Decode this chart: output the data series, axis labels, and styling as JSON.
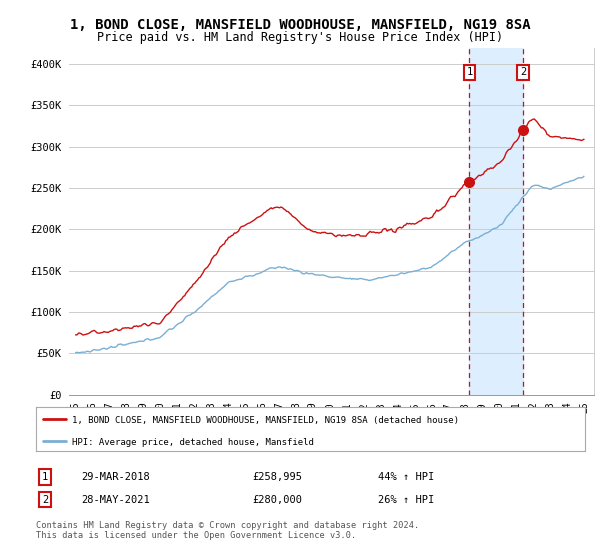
{
  "title": "1, BOND CLOSE, MANSFIELD WOODHOUSE, MANSFIELD, NG19 8SA",
  "subtitle": "Price paid vs. HM Land Registry's House Price Index (HPI)",
  "title_fontsize": 10,
  "subtitle_fontsize": 8.5,
  "ylim": [
    0,
    420000
  ],
  "yticks": [
    0,
    50000,
    100000,
    150000,
    200000,
    250000,
    300000,
    350000,
    400000
  ],
  "ytick_labels": [
    "£0",
    "£50K",
    "£100K",
    "£150K",
    "£200K",
    "£250K",
    "£300K",
    "£350K",
    "£400K"
  ],
  "hpi_color": "#7aafd4",
  "price_color": "#cc1111",
  "vline_color": "#cc1111",
  "shade_color": "#ddeeff",
  "sale1_date_num": 2018.24,
  "sale1_price": 258995,
  "sale2_date_num": 2021.41,
  "sale2_price": 280000,
  "legend_entry1": "1, BOND CLOSE, MANSFIELD WOODHOUSE, MANSFIELD, NG19 8SA (detached house)",
  "legend_entry2": "HPI: Average price, detached house, Mansfield",
  "table_row1": [
    "1",
    "29-MAR-2018",
    "£258,995",
    "44% ↑ HPI"
  ],
  "table_row2": [
    "2",
    "28-MAY-2021",
    "£280,000",
    "26% ↑ HPI"
  ],
  "footnote": "Contains HM Land Registry data © Crown copyright and database right 2024.\nThis data is licensed under the Open Government Licence v3.0.",
  "background_color": "#ffffff",
  "grid_color": "#cccccc"
}
